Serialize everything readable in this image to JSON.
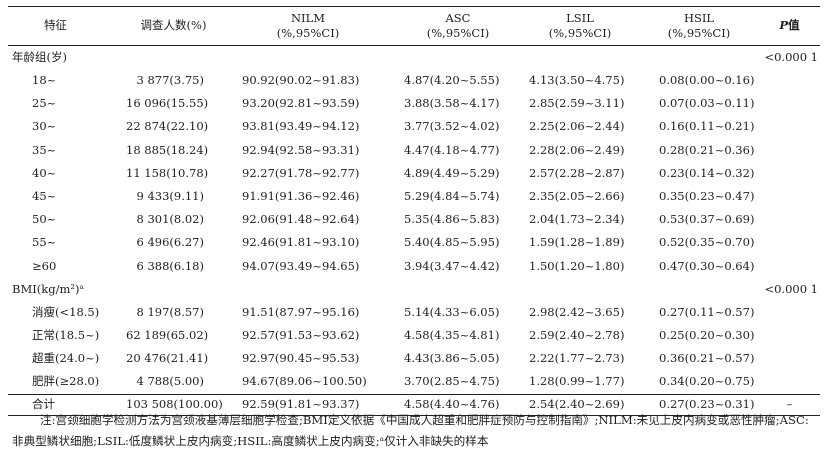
{
  "headers": {
    "feature": "特征",
    "surveyed": "调查人数(%)",
    "nilm": [
      "NILM",
      "(%,95%CI)"
    ],
    "asc": [
      "ASC",
      "(%,95%CI)"
    ],
    "lsil": [
      "LSIL",
      "(%,95%CI)"
    ],
    "hsil": [
      "HSIL",
      "(%,95%CI)"
    ],
    "p": "P值"
  },
  "age_group": {
    "label": "年龄组(岁)",
    "p": "<0.000 1",
    "rows": [
      {
        "label": "18~",
        "n": "3 877(3.75)",
        "nilm": "90.92(90.02~91.83)",
        "asc": "4.87(4.20~5.55)",
        "lsil": "4.13(3.50~4.75)",
        "hsil": "0.08(0.00~0.16)"
      },
      {
        "label": "25~",
        "n": "16 096(15.55)",
        "nilm": "93.20(92.81~93.59)",
        "asc": "3.88(3.58~4.17)",
        "lsil": "2.85(2.59~3.11)",
        "hsil": "0.07(0.03~0.11)"
      },
      {
        "label": "30~",
        "n": "22 874(22.10)",
        "nilm": "93.81(93.49~94.12)",
        "asc": "3.77(3.52~4.02)",
        "lsil": "2.25(2.06~2.44)",
        "hsil": "0.16(0.11~0.21)"
      },
      {
        "label": "35~",
        "n": "18 885(18.24)",
        "nilm": "92.94(92.58~93.31)",
        "asc": "4.47(4.18~4.77)",
        "lsil": "2.28(2.06~2.49)",
        "hsil": "0.28(0.21~0.36)"
      },
      {
        "label": "40~",
        "n": "11 158(10.78)",
        "nilm": "92.27(91.78~92.77)",
        "asc": "4.89(4.49~5.29)",
        "lsil": "2.57(2.28~2.87)",
        "hsil": "0.23(0.14~0.32)"
      },
      {
        "label": "45~",
        "n": "9 433(9.11)",
        "nilm": "91.91(91.36~92.46)",
        "asc": "5.29(4.84~5.74)",
        "lsil": "2.35(2.05~2.66)",
        "hsil": "0.35(0.23~0.47)"
      },
      {
        "label": "50~",
        "n": "8 301(8.02)",
        "nilm": "92.06(91.48~92.64)",
        "asc": "5.35(4.86~5.83)",
        "lsil": "2.04(1.73~2.34)",
        "hsil": "0.53(0.37~0.69)"
      },
      {
        "label": "55~",
        "n": "6 496(6.27)",
        "nilm": "92.46(91.81~93.10)",
        "asc": "5.40(4.85~5.95)",
        "lsil": "1.59(1.28~1.89)",
        "hsil": "0.52(0.35~0.70)"
      },
      {
        "label": "≥60",
        "n": "6 388(6.18)",
        "nilm": "94.07(93.49~94.65)",
        "asc": "3.94(3.47~4.42)",
        "lsil": "1.50(1.20~1.80)",
        "hsil": "0.47(0.30~0.64)"
      }
    ]
  },
  "bmi_group": {
    "label": "BMI(kg/m²)ᵃ",
    "p": "<0.000 1",
    "rows": [
      {
        "label": "消瘦(<18.5)",
        "n": "8 197(8.57)",
        "nilm": "91.51(87.97~95.16)",
        "asc": "5.14(4.33~6.05)",
        "lsil": "2.98(2.42~3.65)",
        "hsil": "0.27(0.11~0.57)"
      },
      {
        "label": "正常(18.5~)",
        "n": "62 189(65.02)",
        "nilm": "92.57(91.53~93.62)",
        "asc": "4.58(4.35~4.81)",
        "lsil": "2.59(2.40~2.78)",
        "hsil": "0.25(0.20~0.30)"
      },
      {
        "label": "超重(24.0~)",
        "n": "20 476(21.41)",
        "nilm": "92.97(90.45~95.53)",
        "asc": "4.43(3.86~5.05)",
        "lsil": "2.22(1.77~2.73)",
        "hsil": "0.36(0.21~0.57)"
      },
      {
        "label": "肥胖(≥28.0)",
        "n": "4 788(5.00)",
        "nilm": "94.67(89.06~100.50)",
        "asc": "3.70(2.85~4.75)",
        "lsil": "1.28(0.99~1.77)",
        "hsil": "0.34(0.20~0.75)"
      }
    ]
  },
  "total": {
    "label": "合计",
    "n": "103 508(100.00)",
    "nilm": "92.59(91.81~93.37)",
    "asc": "4.58(4.40~4.76)",
    "lsil": "2.54(2.40~2.69)",
    "hsil": "0.27(0.23~0.31)",
    "p": "–"
  },
  "note": "注:宫颈细胞学检测方法为宫颈液基薄层细胞学检查;BMI定义依据《中国成人超重和肥胖症预防与控制指南》;NILM:未见上皮内病变或恶性肿瘤;ASC:非典型鳞状细胞;LSIL:低度鳞状上皮内病变;HSIL:高度鳞状上皮内病变;ᵃ仅计入非缺失的样本"
}
